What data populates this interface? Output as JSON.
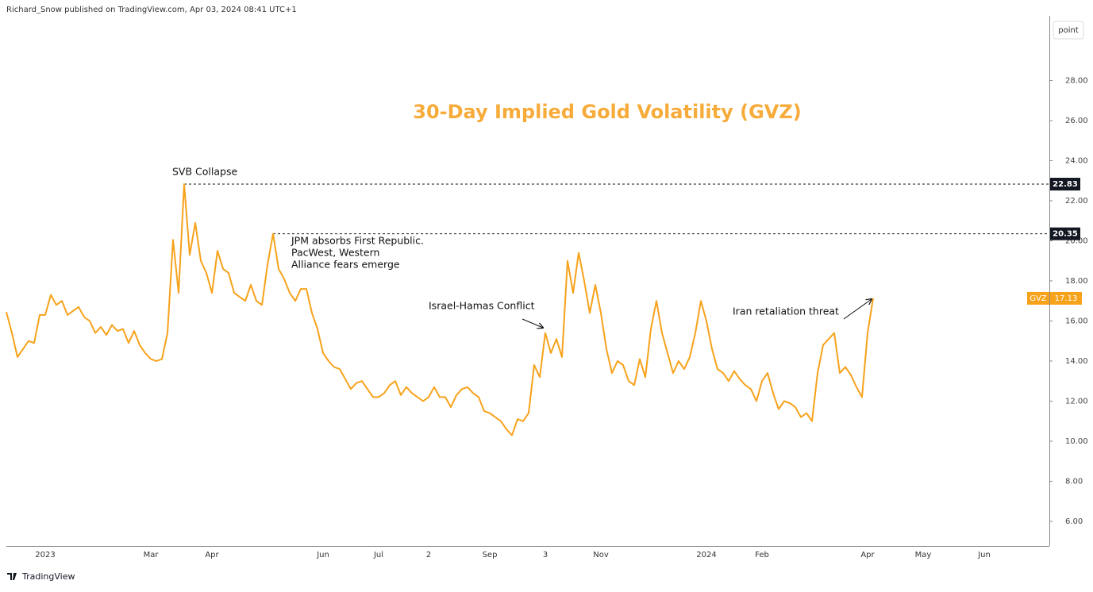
{
  "header": "Richard_Snow published on TradingView.com, Apr 03, 2024 08:41 UTC+1",
  "button": "point",
  "footer": "TradingView",
  "chart_data": {
    "type": "line",
    "title": "30-Day Implied Gold Volatility (GVZ)",
    "annotations": [
      "SVB Collapse",
      "JPM absorbs First Republic.",
      "PacWest, Western",
      "Alliance fears emerge",
      "Israel-Hamas Conflict",
      "Iran retaliation threat"
    ],
    "levels": [
      22.83,
      20.35
    ],
    "categories": [
      null,
      null,
      null,
      null,
      null,
      null,
      null,
      "2023",
      null,
      null,
      null,
      null,
      null,
      null,
      null,
      null,
      null,
      null,
      null,
      null,
      null,
      null,
      null,
      null,
      null,
      null,
      "Mar",
      null,
      null,
      null,
      null,
      null,
      null,
      null,
      null,
      null,
      null,
      "Apr",
      null,
      null,
      null,
      null,
      null,
      null,
      null,
      null,
      null,
      null,
      null,
      null,
      null,
      null,
      null,
      null,
      null,
      null,
      null,
      "Jun",
      null,
      null,
      null,
      null,
      null,
      null,
      null,
      null,
      null,
      "Jul",
      null,
      null,
      null,
      null,
      null,
      null,
      null,
      null,
      "2",
      null,
      null,
      null,
      null,
      null,
      null,
      null,
      null,
      null,
      null,
      "Sep",
      null,
      null,
      null,
      null,
      null,
      null,
      null,
      null,
      null,
      "3",
      null,
      null,
      null,
      null,
      null,
      null,
      null,
      null,
      null,
      "Nov",
      null,
      null,
      null,
      null,
      null,
      null,
      null,
      null,
      null,
      null,
      null,
      null,
      null,
      null,
      null,
      null,
      null,
      null,
      "2024",
      null,
      null,
      null,
      null,
      null,
      null,
      null,
      null,
      null,
      "Feb",
      null,
      null,
      null,
      null,
      null,
      null,
      null,
      null,
      null,
      null,
      null,
      null,
      null,
      null,
      null,
      null,
      null,
      null,
      "Apr",
      null,
      null,
      null,
      null,
      null,
      null,
      null,
      null,
      null,
      "May",
      null,
      null,
      null,
      null,
      null,
      null,
      null,
      null,
      null,
      null,
      "Jun",
      null,
      null,
      null,
      null,
      null,
      null,
      null,
      null,
      null,
      null,
      null
    ],
    "series": [
      {
        "name": "GVZ",
        "color": "#f7a21b",
        "values": [
          16.45,
          15.4,
          14.2,
          14.6,
          15.0,
          14.9,
          16.3,
          16.3,
          17.3,
          16.8,
          17.0,
          16.3,
          16.5,
          16.7,
          16.2,
          16.0,
          15.4,
          15.7,
          15.3,
          15.8,
          15.5,
          15.6,
          14.9,
          15.5,
          14.8,
          14.4,
          14.1,
          14.0,
          14.1,
          15.4,
          20.05,
          17.4,
          22.83,
          19.3,
          20.9,
          19.0,
          18.4,
          17.4,
          19.5,
          18.6,
          18.4,
          17.4,
          17.2,
          17.0,
          17.8,
          17.0,
          16.8,
          18.8,
          20.35,
          18.6,
          18.1,
          17.4,
          17.0,
          17.6,
          17.6,
          16.4,
          15.6,
          14.4,
          14.0,
          13.7,
          13.6,
          13.1,
          12.6,
          12.9,
          13.0,
          12.6,
          12.2,
          12.2,
          12.4,
          12.8,
          13.0,
          12.3,
          12.7,
          12.4,
          12.2,
          12.0,
          12.2,
          12.7,
          12.2,
          12.2,
          11.7,
          12.3,
          12.6,
          12.7,
          12.4,
          12.2,
          11.5,
          11.4,
          11.2,
          11.0,
          10.6,
          10.3,
          11.1,
          11.0,
          11.4,
          13.8,
          13.2,
          15.4,
          14.4,
          15.1,
          14.2,
          19.0,
          17.4,
          19.4,
          18.0,
          16.4,
          17.8,
          16.4,
          14.6,
          13.4,
          14.0,
          13.8,
          13.0,
          12.8,
          14.1,
          13.2,
          15.6,
          17.0,
          15.4,
          14.4,
          13.4,
          14.0,
          13.6,
          14.2,
          15.4,
          17.0,
          16.0,
          14.6,
          13.6,
          13.4,
          13.0,
          13.5,
          13.1,
          12.8,
          12.6,
          12.0,
          13.0,
          13.4,
          12.4,
          11.6,
          12.0,
          11.9,
          11.7,
          11.2,
          11.4,
          11.0,
          13.4,
          14.8,
          15.1,
          15.4,
          13.4,
          13.7,
          13.3,
          12.7,
          12.2,
          15.4,
          17.13,
          null,
          null,
          null,
          null,
          null,
          null,
          null,
          null,
          null,
          null,
          null,
          null,
          null,
          null,
          null,
          null,
          null,
          null,
          null,
          null,
          null,
          null,
          null,
          null,
          null,
          null,
          null,
          null,
          null,
          null,
          null
        ]
      }
    ],
    "ylim": [
      4.77,
      31.03
    ],
    "yticks": [
      {
        "value": 6,
        "label": "6.00"
      },
      {
        "value": 8,
        "label": "8.00"
      },
      {
        "value": 10,
        "label": "10.00"
      },
      {
        "value": 12,
        "label": "12.00"
      },
      {
        "value": 14,
        "label": "14.00"
      },
      {
        "value": 16,
        "label": "16.00"
      },
      {
        "value": 18,
        "label": "18.00"
      },
      {
        "value": 20,
        "label": "20.00"
      },
      {
        "value": 22,
        "label": "22.00"
      },
      {
        "value": 24,
        "label": "24.00"
      },
      {
        "value": 26,
        "label": "26.00"
      },
      {
        "value": 28,
        "label": "28.00"
      }
    ],
    "grid": false
  }
}
